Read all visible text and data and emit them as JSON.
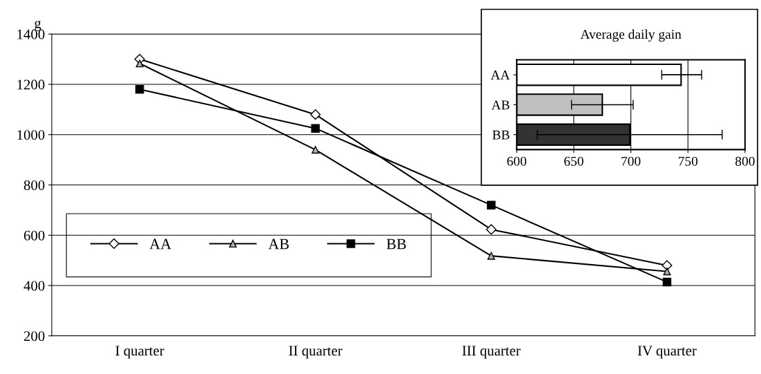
{
  "chart_data": [
    {
      "type": "line",
      "ylabel": "g",
      "categories": [
        "I quarter",
        "II quarter",
        "III quarter",
        "IV quarter"
      ],
      "series": [
        {
          "name": "AA",
          "color": "#ffffff",
          "marker": "diamond",
          "values": [
            1300,
            1080,
            623,
            480
          ]
        },
        {
          "name": "AB",
          "color": "#b0b0b0",
          "marker": "triangle",
          "values": [
            1283,
            940,
            518,
            456
          ]
        },
        {
          "name": "BB",
          "color": "#000000",
          "marker": "square",
          "values": [
            1180,
            1025,
            720,
            414
          ]
        }
      ],
      "ylim": [
        200,
        1400
      ],
      "yticks": [
        200,
        400,
        600,
        800,
        1000,
        1200,
        1400
      ],
      "grid": "y",
      "legend": "left",
      "line_style": "solid"
    },
    {
      "type": "bar",
      "orientation": "horizontal",
      "title": "Average daily gain",
      "categories": [
        "AA",
        "AB",
        "BB"
      ],
      "values": [
        744,
        675,
        699
      ],
      "colors": [
        "#ffffff",
        "#c0c0c0",
        "#333333"
      ],
      "errors": [
        [
          727,
          762
        ],
        [
          648,
          702
        ],
        [
          618,
          780
        ]
      ],
      "xlim": [
        600,
        800
      ],
      "xticks": [
        600,
        650,
        700,
        750,
        800
      ],
      "grid": "x"
    }
  ]
}
